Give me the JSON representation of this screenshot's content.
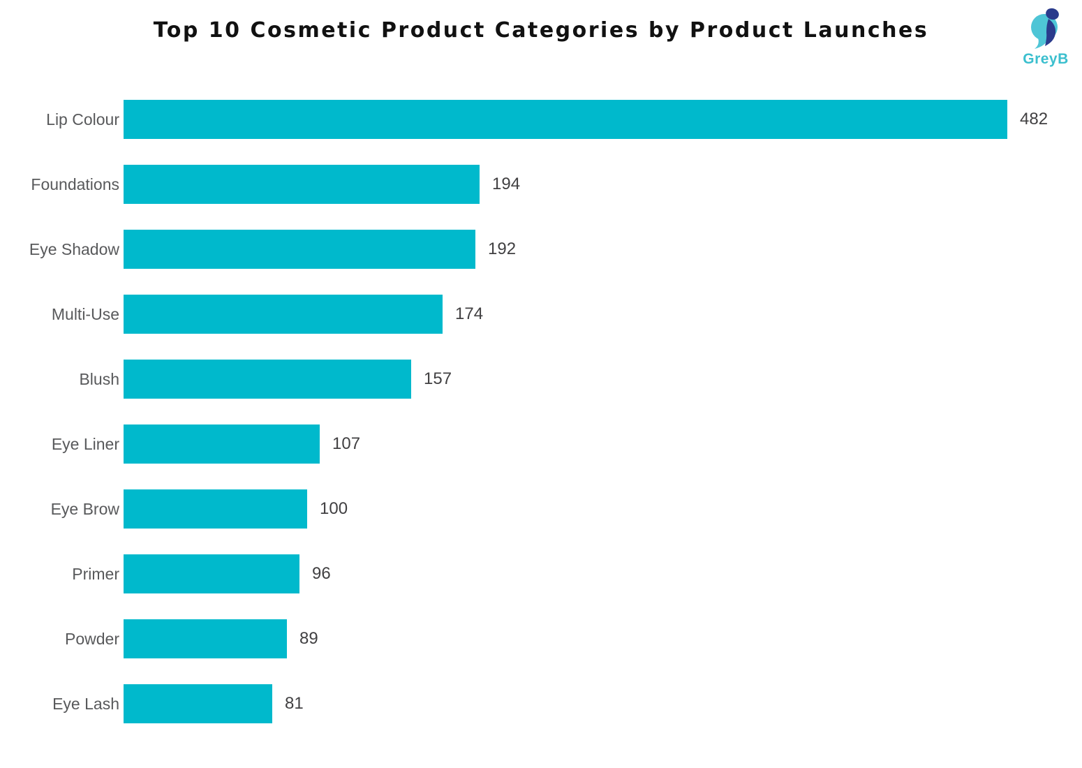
{
  "title": "Top 10 Cosmetic Product Categories by Product Launches",
  "logo": {
    "text": "GreyB",
    "teal": "#4EC5D6",
    "navy": "#2A3B8C",
    "text_color": "#3BBFCE"
  },
  "colors": {
    "bar": "#00B9CC",
    "category_label": "#58595B",
    "value_label": "#414042",
    "title": "#111111",
    "background": "#FFFFFF"
  },
  "chart_data": {
    "type": "bar",
    "orientation": "horizontal",
    "title": "Top 10 Cosmetic Product Categories by Product Launches",
    "categories": [
      "Lip Colour",
      "Foundations",
      "Eye Shadow",
      "Multi-Use",
      "Blush",
      "Eye Liner",
      "Eye Brow",
      "Primer",
      "Powder",
      "Eye Lash"
    ],
    "values": [
      482,
      194,
      192,
      174,
      157,
      107,
      100,
      96,
      89,
      81
    ],
    "xlim": [
      0,
      482
    ],
    "xlabel": "",
    "ylabel": "",
    "grid": false,
    "legend": false,
    "data_labels": true,
    "bar_color": "#00B9CC"
  }
}
